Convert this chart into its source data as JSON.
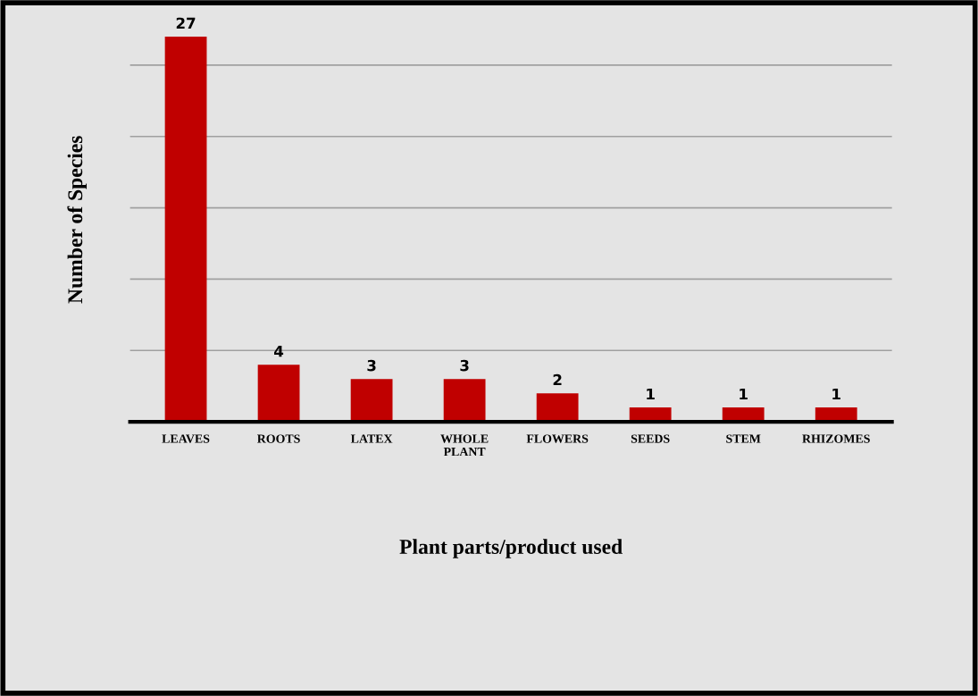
{
  "chart_data": {
    "type": "bar",
    "categories": [
      "LEAVES",
      "ROOTS",
      "LATEX",
      "WHOLE PLANT",
      "FLOWERS",
      "SEEDS",
      "STEM",
      "RHIZOMES"
    ],
    "values": [
      27,
      4,
      3,
      3,
      2,
      1,
      1,
      1
    ],
    "color": "#c00000",
    "xlabel": "Plant parts/product used",
    "ylabel": "Number of Species",
    "yticks": [
      {
        "value": 0,
        "label": null
      },
      {
        "value": 5,
        "label": null
      },
      {
        "value": 10,
        "label": null
      },
      {
        "value": 15,
        "label": null
      },
      {
        "value": 20,
        "label": null
      },
      {
        "value": 25,
        "label": null
      }
    ],
    "tick_labels": "x",
    "grid": "y",
    "data_labels": true
  }
}
